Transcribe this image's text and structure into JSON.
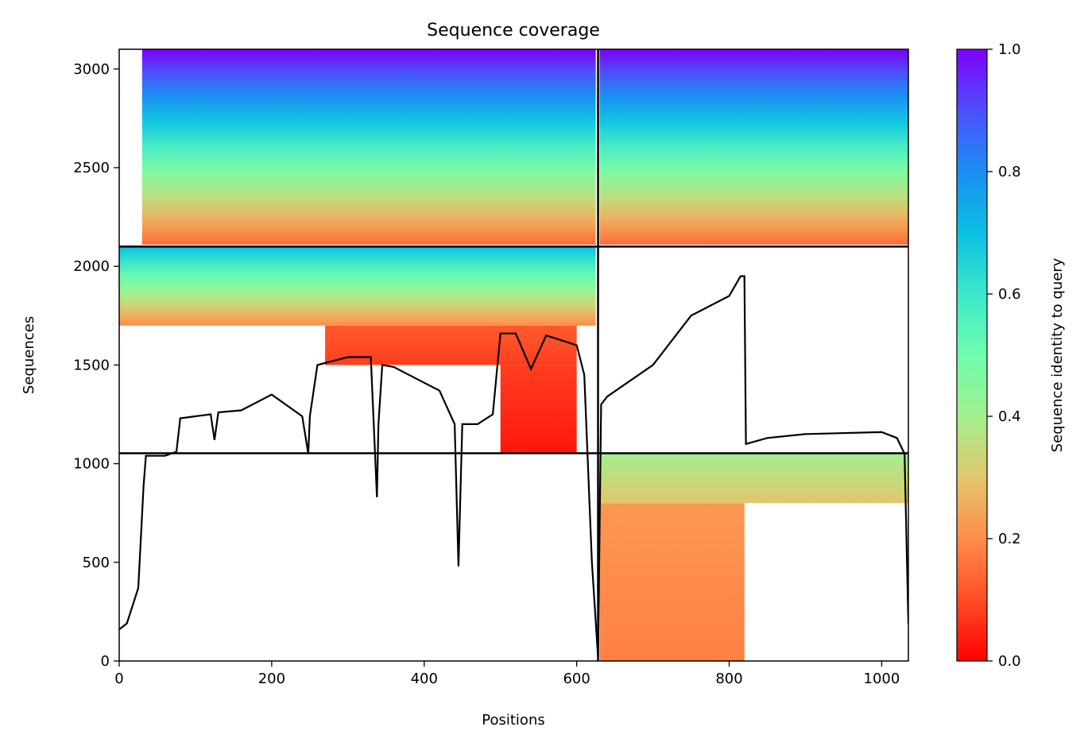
{
  "chart_data": {
    "type": "heatmap",
    "title": "Sequence coverage",
    "xlabel": "Positions",
    "ylabel": "Sequences",
    "xlim": [
      0,
      1035
    ],
    "ylim": [
      0,
      3100
    ],
    "xticks": [
      0,
      200,
      400,
      600,
      800,
      1000
    ],
    "yticks": [
      0,
      500,
      1000,
      1500,
      2000,
      2500,
      3000
    ],
    "colorbar": {
      "label": "Sequence identity to query",
      "colormap": "rainbow_r",
      "range": [
        0,
        1
      ],
      "ticks": [
        "0.0",
        "0.2",
        "0.4",
        "0.6",
        "0.8",
        "1.0"
      ]
    },
    "boundaries": {
      "vertical_x": 628,
      "horizontal_y": [
        1053,
        2100
      ]
    },
    "coverage_blocks": [
      {
        "x": [
          30,
          625
        ],
        "y": [
          2110,
          3100
        ],
        "identity_low": 0.15,
        "identity_high": 1.0
      },
      {
        "x": [
          630,
          1035
        ],
        "y": [
          2110,
          3100
        ],
        "identity_low": 0.15,
        "identity_high": 1.0
      },
      {
        "x": [
          0,
          625
        ],
        "y": [
          1700,
          2100
        ],
        "identity_low": 0.2,
        "identity_high": 0.7
      },
      {
        "x": [
          270,
          600
        ],
        "y": [
          1500,
          1700
        ],
        "identity_low": 0.08,
        "identity_high": 0.12
      },
      {
        "x": [
          500,
          600
        ],
        "y": [
          1053,
          1500
        ],
        "identity_low": 0.03,
        "identity_high": 0.08
      },
      {
        "x": [
          630,
          820
        ],
        "y": [
          0,
          800
        ],
        "identity_low": 0.18,
        "identity_high": 0.22
      },
      {
        "x": [
          630,
          1035
        ],
        "y": [
          800,
          1053
        ],
        "identity_low": 0.3,
        "identity_high": 0.4
      }
    ],
    "coverage_line": {
      "x": [
        0,
        10,
        25,
        32,
        35,
        40,
        60,
        75,
        80,
        100,
        120,
        125,
        130,
        160,
        200,
        240,
        248,
        250,
        260,
        300,
        330,
        338,
        340,
        345,
        360,
        400,
        420,
        440,
        445,
        450,
        470,
        490,
        500,
        520,
        540,
        560,
        600,
        610,
        620,
        625,
        628,
        632,
        640,
        700,
        750,
        800,
        815,
        820,
        822,
        850,
        900,
        1000,
        1020,
        1030,
        1035
      ],
      "y": [
        160,
        190,
        370,
        890,
        1040,
        1040,
        1040,
        1060,
        1230,
        1240,
        1250,
        1120,
        1260,
        1270,
        1350,
        1240,
        1050,
        1240,
        1500,
        1540,
        1540,
        830,
        1200,
        1500,
        1490,
        1410,
        1370,
        1200,
        480,
        1200,
        1200,
        1250,
        1660,
        1660,
        1480,
        1650,
        1600,
        1450,
        500,
        200,
        20,
        1300,
        1340,
        1500,
        1750,
        1850,
        1950,
        1950,
        1100,
        1130,
        1150,
        1160,
        1130,
        1050,
        190
      ]
    }
  }
}
